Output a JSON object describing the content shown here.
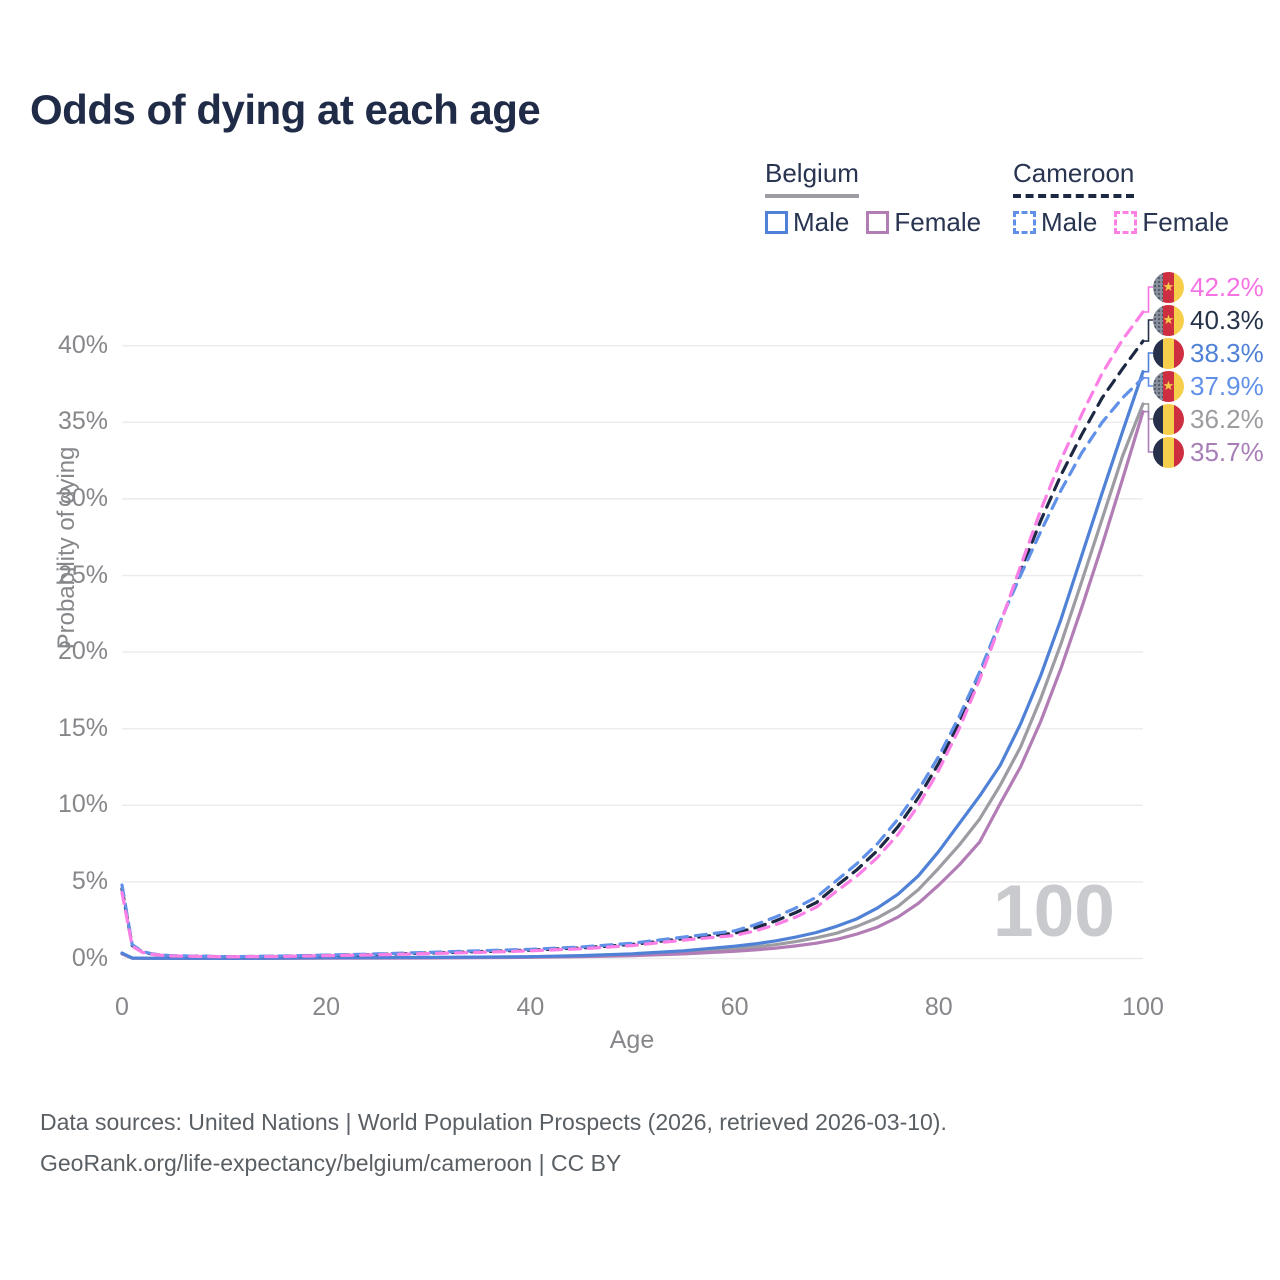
{
  "header": {
    "title": "Odds of dying at each age"
  },
  "legend": {
    "groups": [
      {
        "name": "Belgium",
        "line_style": "solid",
        "line_color": "#9c9ca2",
        "items": [
          {
            "label": "Male",
            "color": "#4f81d6",
            "dashed": false
          },
          {
            "label": "Female",
            "color": "#b27cb5",
            "dashed": false
          }
        ]
      },
      {
        "name": "Cameroon",
        "line_style": "dashed",
        "line_color": "#1d2942",
        "items": [
          {
            "label": "Male",
            "color": "#6190e8",
            "dashed": true
          },
          {
            "label": "Female",
            "color": "#fb80e6",
            "dashed": true
          }
        ]
      }
    ]
  },
  "chart_data": {
    "type": "line",
    "title": "Odds of dying at each age",
    "xlabel": "Age",
    "ylabel": "Probability of dying",
    "xlim": [
      0,
      100
    ],
    "ylim": [
      0,
      44
    ],
    "grid": "horizontal-only",
    "legend_position": "top-right",
    "watermark": "100",
    "x_ticks": [
      {
        "label": "0",
        "value": 0
      },
      {
        "label": "20",
        "value": 20
      },
      {
        "label": "40",
        "value": 40
      },
      {
        "label": "60",
        "value": 60
      },
      {
        "label": "80",
        "value": 80
      },
      {
        "label": "100",
        "value": 100
      }
    ],
    "y_ticks": [
      {
        "label": "0%",
        "value": 0
      },
      {
        "label": "5%",
        "value": 5
      },
      {
        "label": "10%",
        "value": 10
      },
      {
        "label": "15%",
        "value": 15
      },
      {
        "label": "20%",
        "value": 20
      },
      {
        "label": "25%",
        "value": 25
      },
      {
        "label": "30%",
        "value": 30
      },
      {
        "label": "35%",
        "value": 35
      },
      {
        "label": "40%",
        "value": 40
      }
    ],
    "x": [
      0,
      1,
      2,
      3,
      4,
      5,
      10,
      15,
      20,
      25,
      30,
      35,
      40,
      45,
      50,
      55,
      60,
      62,
      64,
      66,
      68,
      70,
      72,
      74,
      76,
      78,
      80,
      82,
      84,
      86,
      88,
      90,
      92,
      94,
      96,
      98,
      100
    ],
    "series": [
      {
        "name": "Belgium",
        "country": "Belgium",
        "sex": "Both",
        "color": "#9c9ca2",
        "dashed": false,
        "label_color": "#9b9ba0",
        "end_label": "36.2%",
        "end_value": 36.2,
        "flag": "belgium",
        "values": [
          0.33,
          0.025,
          0.018,
          0.013,
          0.011,
          0.009,
          0.009,
          0.018,
          0.035,
          0.045,
          0.055,
          0.07,
          0.1,
          0.155,
          0.25,
          0.4,
          0.63,
          0.75,
          0.9,
          1.1,
          1.35,
          1.65,
          2.1,
          2.65,
          3.4,
          4.5,
          5.9,
          7.4,
          9.1,
          11.3,
          13.8,
          17.0,
          20.6,
          24.6,
          28.7,
          32.8,
          36.2
        ]
      },
      {
        "name": "Belgium Female",
        "country": "Belgium",
        "sex": "Female",
        "color": "#b27cb5",
        "dashed": false,
        "label_color": "#a77fb6",
        "end_label": "35.7%",
        "end_value": 35.7,
        "flag": "belgium",
        "values": [
          0.3,
          0.02,
          0.015,
          0.012,
          0.01,
          0.008,
          0.008,
          0.015,
          0.02,
          0.025,
          0.035,
          0.05,
          0.08,
          0.12,
          0.19,
          0.3,
          0.47,
          0.56,
          0.67,
          0.82,
          1.0,
          1.25,
          1.6,
          2.05,
          2.7,
          3.6,
          4.8,
          6.1,
          7.6,
          10.1,
          12.5,
          15.5,
          19.0,
          22.9,
          27.0,
          31.3,
          35.7
        ]
      },
      {
        "name": "Belgium Male",
        "country": "Belgium",
        "sex": "Male",
        "color": "#4f81d6",
        "dashed": false,
        "label_color": "#4f81d6",
        "end_label": "38.3%",
        "end_value": 38.3,
        "flag": "belgium",
        "values": [
          0.35,
          0.03,
          0.02,
          0.015,
          0.012,
          0.01,
          0.01,
          0.02,
          0.05,
          0.06,
          0.07,
          0.09,
          0.12,
          0.19,
          0.31,
          0.5,
          0.8,
          0.95,
          1.15,
          1.4,
          1.7,
          2.1,
          2.6,
          3.3,
          4.2,
          5.4,
          7.0,
          8.8,
          10.6,
          12.6,
          15.3,
          18.5,
          22.2,
          26.3,
          30.4,
          34.4,
          38.3
        ]
      },
      {
        "name": "Cameroon",
        "country": "Cameroon",
        "sex": "Both",
        "color": "#1d2942",
        "dashed": true,
        "label_color": "#273349",
        "end_label": "40.3%",
        "end_value": 40.3,
        "flag": "cameroon",
        "values": [
          4.55,
          0.85,
          0.42,
          0.28,
          0.21,
          0.17,
          0.115,
          0.14,
          0.2,
          0.27,
          0.36,
          0.45,
          0.55,
          0.69,
          0.92,
          1.3,
          1.65,
          2.0,
          2.45,
          3.0,
          3.65,
          4.75,
          5.8,
          7.05,
          8.6,
          10.5,
          12.75,
          15.4,
          18.45,
          21.9,
          25.3,
          28.6,
          31.6,
          34.2,
          36.6,
          38.5,
          40.3
        ]
      },
      {
        "name": "Cameroon Male",
        "country": "Cameroon",
        "sex": "Male",
        "color": "#6190e8",
        "dashed": true,
        "label_color": "#6190e8",
        "end_label": "37.9%",
        "end_value": 37.9,
        "flag": "cameroon",
        "values": [
          4.8,
          0.9,
          0.45,
          0.3,
          0.22,
          0.18,
          0.12,
          0.15,
          0.22,
          0.3,
          0.4,
          0.5,
          0.6,
          0.75,
          1.0,
          1.4,
          1.8,
          2.2,
          2.7,
          3.3,
          4.0,
          5.1,
          6.2,
          7.5,
          9.1,
          11.0,
          13.2,
          15.8,
          18.7,
          22.0,
          25.0,
          27.9,
          30.6,
          33.0,
          35.0,
          36.6,
          37.9
        ]
      },
      {
        "name": "Cameroon Female",
        "country": "Cameroon",
        "sex": "Female",
        "color": "#fb80e6",
        "dashed": true,
        "label_color": "#f673e3",
        "end_label": "42.2%",
        "end_value": 42.2,
        "flag": "cameroon",
        "values": [
          4.3,
          0.8,
          0.4,
          0.27,
          0.2,
          0.16,
          0.11,
          0.13,
          0.18,
          0.24,
          0.32,
          0.4,
          0.5,
          0.63,
          0.85,
          1.2,
          1.5,
          1.8,
          2.2,
          2.7,
          3.35,
          4.4,
          5.4,
          6.6,
          8.1,
          10.0,
          12.3,
          15.0,
          18.2,
          21.8,
          25.6,
          29.3,
          32.6,
          35.5,
          38.2,
          40.4,
          42.2
        ]
      }
    ]
  },
  "flags": {
    "cameroon": {
      "stripe1": "#8a919e",
      "stripe1_dots": "#545b66",
      "stripe2": "#cd2f40",
      "stripe3": "#f5cf4b",
      "star": "#f5cf4b"
    },
    "belgium": {
      "stripe1": "#27304a",
      "stripe2": "#f5cf4b",
      "stripe3": "#cd2f40"
    }
  },
  "footer": {
    "line1": "Data sources: United Nations | World Population Prospects (2026, retrieved 2026-03-10).",
    "line2": "GeoRank.org/life-expectancy/belgium/cameroon | CC BY"
  }
}
